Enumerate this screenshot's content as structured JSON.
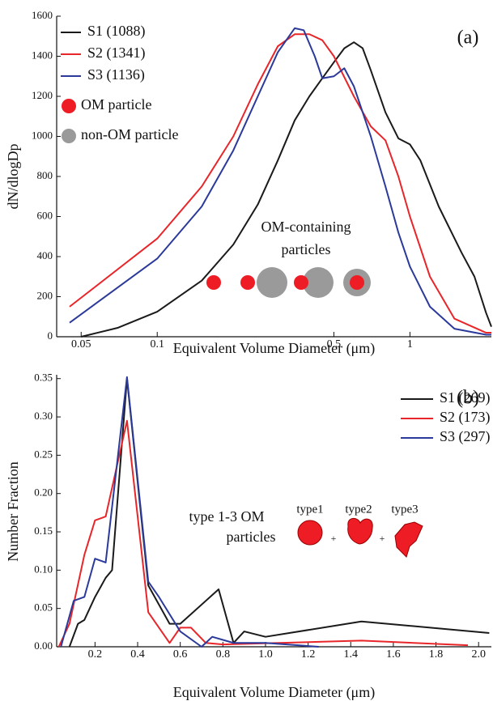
{
  "chart_data": [
    {
      "type": "line",
      "panel_label": "(a)",
      "xlabel": "Equivalent Volume Diameter (μm)",
      "ylabel": "dN/dlogDp",
      "xlog": true,
      "xlim": [
        0.04,
        2.1
      ],
      "xticks": [
        0.05,
        0.1,
        0.5,
        1
      ],
      "ylim": [
        0,
        1600
      ],
      "yticks": [
        0,
        200,
        400,
        600,
        800,
        1000,
        1200,
        1400,
        1600
      ],
      "annotation": [
        "OM-containing",
        "particles"
      ],
      "markers": [
        {
          "label": "OM particle",
          "color": "#ee1c24"
        },
        {
          "label": "non-OM particle",
          "color": "#9a9a9a"
        }
      ],
      "series": [
        {
          "name": "S1  (1088)",
          "color": "#1a1a1a",
          "x": [
            0.05,
            0.07,
            0.1,
            0.15,
            0.2,
            0.25,
            0.3,
            0.35,
            0.4,
            0.45,
            0.5,
            0.55,
            0.6,
            0.65,
            0.7,
            0.8,
            0.9,
            1.0,
            1.1,
            1.3,
            1.6,
            1.8,
            2.0,
            2.1
          ],
          "values": [
            0,
            45,
            125,
            280,
            460,
            660,
            880,
            1080,
            1200,
            1290,
            1370,
            1440,
            1470,
            1440,
            1330,
            1120,
            990,
            960,
            880,
            650,
            420,
            300,
            120,
            50
          ]
        },
        {
          "name": "S2  (1341)",
          "color": "#e8262a",
          "x": [
            0.045,
            0.1,
            0.15,
            0.2,
            0.25,
            0.3,
            0.35,
            0.4,
            0.45,
            0.5,
            0.6,
            0.7,
            0.8,
            0.9,
            1.0,
            1.2,
            1.5,
            2.0,
            2.1
          ],
          "values": [
            150,
            490,
            750,
            1000,
            1260,
            1450,
            1510,
            1510,
            1480,
            1400,
            1200,
            1050,
            980,
            800,
            600,
            300,
            90,
            20,
            20
          ]
        },
        {
          "name": "S3  (1136)",
          "color": "#2b3a9a",
          "x": [
            0.045,
            0.1,
            0.15,
            0.2,
            0.25,
            0.3,
            0.35,
            0.38,
            0.42,
            0.45,
            0.5,
            0.55,
            0.6,
            0.7,
            0.8,
            0.9,
            1.0,
            1.2,
            1.5,
            2.0,
            2.1
          ],
          "values": [
            70,
            390,
            650,
            930,
            1200,
            1420,
            1540,
            1530,
            1400,
            1290,
            1300,
            1340,
            1250,
            1000,
            750,
            520,
            350,
            150,
            40,
            10,
            10
          ]
        }
      ]
    },
    {
      "type": "line",
      "panel_label": "(b)",
      "xlabel": "Equivalent Volume Diameter (μm)",
      "ylabel": "Number Fraction",
      "xlog": false,
      "xlim": [
        0.02,
        2.06
      ],
      "xticks": [
        0.2,
        0.4,
        0.6,
        0.8,
        {
          "value": 1.0,
          "label": "1.0"
        },
        1.2,
        1.4,
        1.6,
        1.8,
        {
          "value": 2.0,
          "label": "2.0"
        }
      ],
      "ylim": [
        0,
        0.355
      ],
      "yticks": [
        {
          "value": 0,
          "label": "0.00"
        },
        0.05,
        {
          "value": 0.1,
          "label": "0.10"
        },
        0.15,
        {
          "value": 0.2,
          "label": "0.20"
        },
        0.25,
        {
          "value": 0.3,
          "label": "0.30"
        },
        0.35
      ],
      "annotation": [
        "type 1-3 OM",
        "particles"
      ],
      "shape_labels": [
        "type1",
        "type2",
        "type3"
      ],
      "plus": "+",
      "series": [
        {
          "name": "S1 (269)",
          "color": "#1a1a1a",
          "x": [
            0.08,
            0.12,
            0.15,
            0.2,
            0.25,
            0.28,
            0.35,
            0.45,
            0.55,
            0.6,
            0.78,
            0.85,
            0.9,
            1.0,
            1.45,
            2.05
          ],
          "values": [
            0,
            0.03,
            0.035,
            0.065,
            0.09,
            0.1,
            0.35,
            0.08,
            0.03,
            0.03,
            0.075,
            0.005,
            0.02,
            0.013,
            0.033,
            0.018
          ]
        },
        {
          "name": "S2 (173)",
          "color": "#e8262a",
          "x": [
            0.03,
            0.08,
            0.15,
            0.2,
            0.25,
            0.35,
            0.45,
            0.55,
            0.6,
            0.65,
            0.72,
            0.8,
            1.45,
            1.95
          ],
          "values": [
            0,
            0.03,
            0.12,
            0.165,
            0.17,
            0.295,
            0.045,
            0.005,
            0.025,
            0.025,
            0.005,
            0.003,
            0.008,
            0.002
          ]
        },
        {
          "name": "S3 (297)",
          "color": "#2b3a9a",
          "x": [
            0.04,
            0.1,
            0.15,
            0.2,
            0.25,
            0.35,
            0.45,
            0.5,
            0.6,
            0.7,
            0.75,
            0.85,
            1.0,
            1.25
          ],
          "values": [
            0,
            0.06,
            0.065,
            0.115,
            0.11,
            0.352,
            0.085,
            0.065,
            0.02,
            0,
            0.013,
            0.005,
            0.005,
            0
          ]
        }
      ]
    }
  ]
}
